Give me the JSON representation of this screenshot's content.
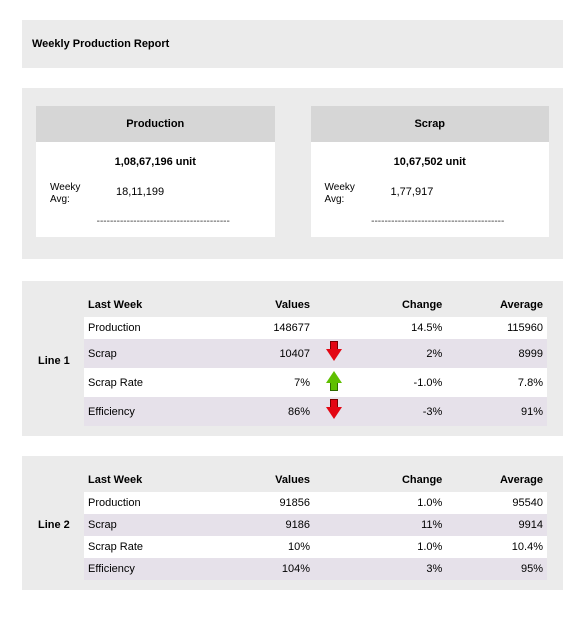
{
  "title": "Weekly Production Report",
  "cards": {
    "production": {
      "header": "Production",
      "total": "1,08,67,196 unit",
      "avg_label": "Weeky Avg:",
      "avg_value": "18,11,199",
      "divider": "----------------------------------------"
    },
    "scrap": {
      "header": "Scrap",
      "total": "10,67,502 unit",
      "avg_label": "Weeky Avg:",
      "avg_value": "1,77,917",
      "divider": "----------------------------------------"
    }
  },
  "columns": {
    "lastweek": "Last Week",
    "values": "Values",
    "change": "Change",
    "average": "Average"
  },
  "lines": [
    {
      "label": "Line 1",
      "rows": [
        {
          "name": "Production",
          "value": "148677",
          "icon": "",
          "change": "14.5%",
          "average": "115960",
          "tint": "white"
        },
        {
          "name": "Scrap",
          "value": "10407",
          "icon": "down",
          "change": "2%",
          "average": "8999",
          "tint": "tint"
        },
        {
          "name": "Scrap Rate",
          "value": "7%",
          "icon": "up",
          "change": "-1.0%",
          "average": "7.8%",
          "tint": "white"
        },
        {
          "name": "Efficiency",
          "value": "86%",
          "icon": "down",
          "change": "-3%",
          "average": "91%",
          "tint": "tint"
        }
      ]
    },
    {
      "label": "Line 2",
      "rows": [
        {
          "name": "Production",
          "value": "91856",
          "icon": "",
          "change": "1.0%",
          "average": "95540",
          "tint": "white"
        },
        {
          "name": "Scrap",
          "value": "9186",
          "icon": "",
          "change": "11%",
          "average": "9914",
          "tint": "tint"
        },
        {
          "name": "Scrap Rate",
          "value": "10%",
          "icon": "",
          "change": "1.0%",
          "average": "10.4%",
          "tint": "white"
        },
        {
          "name": "Efficiency",
          "value": "104%",
          "icon": "",
          "change": "3%",
          "average": "95%",
          "tint": "tint"
        }
      ]
    }
  ],
  "styling": {
    "page_bg": "#ffffff",
    "section_bg": "#ebebeb",
    "card_head_bg": "#d6d6d6",
    "row_tint_bg": "#e6e1ea",
    "arrow_down_color": "#e30613",
    "arrow_up_color": "#5fbf00",
    "font_family": "Arial",
    "title_fontsize": 11,
    "body_fontsize": 11
  }
}
